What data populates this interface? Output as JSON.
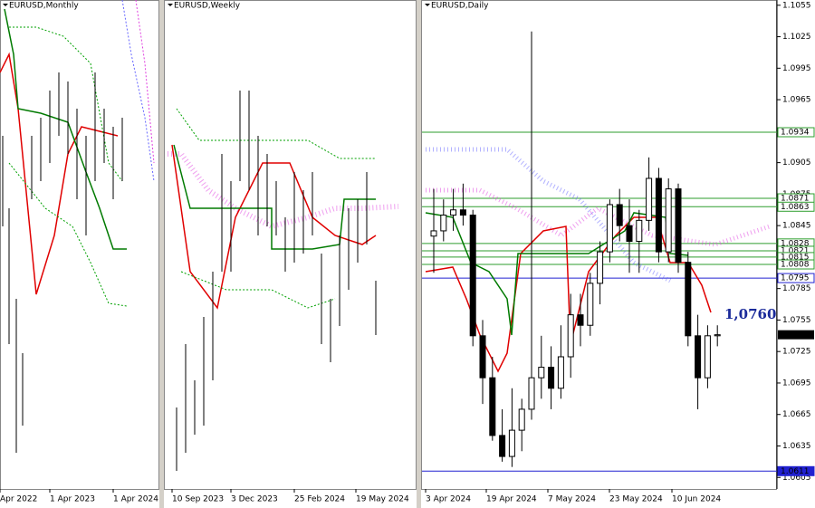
{
  "chart_data": {
    "type": "candlestick",
    "panels": [
      {
        "title": "EURUSD,Monthly",
        "xlabels": [
          "Apr 2022",
          "1 Apr 2023",
          "1 Apr 2024"
        ]
      },
      {
        "title": "EURUSD,Weekly",
        "xlabels": [
          "10 Sep 2023",
          "3 Dec 2023",
          "25 Feb 2024",
          "19 May 2024"
        ]
      },
      {
        "title": "EURUSD,Daily",
        "xlabels": [
          "3 Apr 2024",
          "19 Apr 2024",
          "7 May 2024",
          "23 May 2024",
          "10 Jun 2024"
        ]
      }
    ],
    "ylim": [
      1.0594,
      1.106
    ],
    "yticks": [
      1.1055,
      1.1025,
      1.0995,
      1.0965,
      1.0905,
      1.0875,
      1.0845,
      1.0785,
      1.0755,
      1.0725,
      1.0695,
      1.0665,
      1.0635,
      1.0605
    ],
    "levels": [
      {
        "value": 1.0934,
        "color": "#2e9e2e"
      },
      {
        "value": 1.0871,
        "color": "#2e9e2e"
      },
      {
        "value": 1.0863,
        "color": "#2e9e2e"
      },
      {
        "value": 1.0828,
        "color": "#2e9e2e"
      },
      {
        "value": 1.0821,
        "color": "#2e9e2e"
      },
      {
        "value": 1.0815,
        "color": "#2e9e2e"
      },
      {
        "value": 1.0808,
        "color": "#2e9e2e"
      },
      {
        "value": 1.0795,
        "color": "#2020d0"
      },
      {
        "value": 1.0611,
        "color": "#2020d0"
      }
    ],
    "last_price": 1.0741,
    "annotation": "1,0760",
    "candles": {
      "open": [
        1.0835,
        1.084,
        1.0855,
        1.086,
        1.0855,
        1.074,
        1.07,
        1.0645,
        1.0625,
        1.065,
        1.067,
        1.07,
        1.071,
        1.069,
        1.072,
        1.076,
        1.075,
        1.079,
        1.082,
        1.0865,
        1.0845,
        1.083,
        1.085,
        1.089,
        1.082,
        1.088,
        1.081,
        1.074,
        1.07,
        1.074
      ],
      "high": [
        1.088,
        1.087,
        1.088,
        1.0885,
        1.086,
        1.0755,
        1.072,
        1.067,
        1.069,
        1.068,
        1.103,
        1.074,
        1.073,
        1.075,
        1.078,
        1.078,
        1.08,
        1.083,
        1.087,
        1.088,
        1.087,
        1.086,
        1.091,
        1.09,
        1.089,
        1.0885,
        1.082,
        1.076,
        1.075,
        1.075
      ],
      "low": [
        1.08,
        1.083,
        1.084,
        1.0845,
        1.073,
        1.0675,
        1.064,
        1.062,
        1.0615,
        1.063,
        1.066,
        1.068,
        1.067,
        1.068,
        1.07,
        1.073,
        1.074,
        1.077,
        1.081,
        1.083,
        1.08,
        1.08,
        1.084,
        1.081,
        1.081,
        1.08,
        1.073,
        1.067,
        1.069,
        1.073
      ],
      "close": [
        1.084,
        1.0855,
        1.086,
        1.0855,
        1.074,
        1.07,
        1.0645,
        1.0625,
        1.065,
        1.067,
        1.07,
        1.071,
        1.069,
        1.072,
        1.076,
        1.075,
        1.079,
        1.082,
        1.0865,
        1.0845,
        1.083,
        1.085,
        1.089,
        1.082,
        1.088,
        1.081,
        1.074,
        1.07,
        1.074,
        1.0741
      ]
    }
  }
}
